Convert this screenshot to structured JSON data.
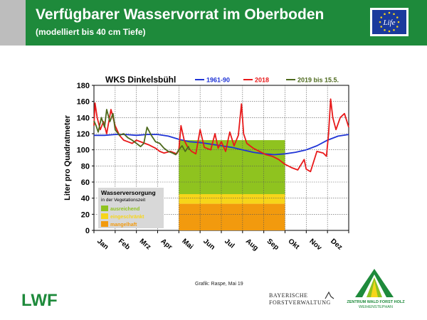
{
  "header": {
    "title": "Verfügbarer Wasservorrat im Oberboden",
    "subtitle": "(modelliert bis 40 cm Tiefe)"
  },
  "eu_badge": {
    "text": "Life",
    "icon": "eu-life-flag-icon",
    "color": "#1a3a9c"
  },
  "chart_data": {
    "type": "line",
    "title": "WKS Dinkelsbühl",
    "ylabel": "Liter pro Quadratmeter",
    "xlabel": "",
    "ylim": [
      0,
      180
    ],
    "yticks": [
      0,
      20,
      40,
      60,
      80,
      100,
      120,
      140,
      160,
      180
    ],
    "xlim": [
      0,
      12
    ],
    "months": [
      "Jan",
      "Feb",
      "Mrz",
      "Apr",
      "Mai",
      "Jun",
      "Jul",
      "Aug",
      "Sep",
      "Okt",
      "Nov",
      "Dez"
    ],
    "grid": true,
    "legend_placement": "top",
    "series": [
      {
        "name": "1961-90",
        "color": "#1f34d6",
        "x": [
          0,
          0.5,
          1,
          1.5,
          2,
          2.5,
          3,
          3.5,
          4,
          4.5,
          5,
          5.5,
          6,
          6.5,
          7,
          7.5,
          8,
          8.5,
          9,
          9.5,
          10,
          10.5,
          11,
          11.5,
          12
        ],
        "y": [
          118,
          118,
          119,
          119,
          118,
          119,
          119,
          117,
          113,
          110,
          109,
          107,
          105,
          103,
          100,
          97,
          95,
          94,
          95,
          97,
          100,
          105,
          112,
          117,
          119
        ]
      },
      {
        "name": "2018",
        "color": "#e8191a",
        "x": [
          0,
          0.05,
          0.15,
          0.3,
          0.45,
          0.6,
          0.8,
          1.0,
          1.2,
          1.4,
          1.6,
          1.8,
          2.0,
          2.3,
          2.6,
          2.9,
          3.1,
          3.3,
          3.6,
          3.9,
          4.0,
          4.1,
          4.25,
          4.4,
          4.6,
          4.8,
          5.0,
          5.2,
          5.5,
          5.7,
          5.85,
          6.0,
          6.2,
          6.4,
          6.6,
          6.8,
          6.95,
          7.05,
          7.2,
          7.5,
          7.8,
          8.1,
          8.4,
          8.7,
          9.0,
          9.3,
          9.6,
          9.9,
          10.0,
          10.2,
          10.5,
          10.8,
          10.95,
          11.05,
          11.15,
          11.25,
          11.4,
          11.6,
          11.8,
          12.0
        ],
        "y": [
          130,
          158,
          140,
          125,
          135,
          120,
          150,
          130,
          118,
          112,
          110,
          108,
          112,
          109,
          106,
          102,
          98,
          96,
          98,
          95,
          100,
          130,
          112,
          104,
          98,
          95,
          125,
          103,
          100,
          120,
          102,
          110,
          98,
          122,
          105,
          118,
          157,
          120,
          108,
          102,
          98,
          94,
          92,
          88,
          82,
          78,
          75,
          88,
          76,
          73,
          98,
          96,
          92,
          120,
          163,
          140,
          125,
          140,
          145,
          128
        ]
      },
      {
        "name": "2019 bis 15.5.",
        "color": "#4e6a1e",
        "x": [
          0,
          0.1,
          0.2,
          0.35,
          0.5,
          0.6,
          0.75,
          0.9,
          1.0,
          1.2,
          1.4,
          1.6,
          1.8,
          2.0,
          2.2,
          2.35,
          2.5,
          2.7,
          2.9,
          3.1,
          3.3,
          3.5,
          3.7,
          3.85,
          4.0,
          4.15,
          4.3,
          4.45,
          4.5
        ],
        "y": [
          136,
          130,
          122,
          140,
          128,
          150,
          135,
          145,
          125,
          118,
          120,
          115,
          112,
          108,
          104,
          108,
          128,
          118,
          110,
          108,
          102,
          98,
          96,
          94,
          100,
          105,
          98,
          104,
          100
        ]
      }
    ],
    "supply_blocks": [
      {
        "label": "ausreichend",
        "color": "#8fc31f",
        "y0": 45,
        "y1": 112
      },
      {
        "label": "eingeschränkt",
        "color": "#f7d51a",
        "y0": 33,
        "y1": 45
      },
      {
        "label": "mangelhaft",
        "color": "#f29a0e",
        "y0": 0,
        "y1": 33
      }
    ],
    "supply_x_range": [
      4,
      9
    ],
    "supply_legend": {
      "title": "Wasserversorgung",
      "subtitle": "in der Vegetationszeit"
    }
  },
  "footer": {
    "credit": "Grafik: Raspe, Mai 19",
    "lwf_logo_text": "LWF",
    "bfv_line1": "BAYERISCHE",
    "bfv_line2": "FORSTVERWALTUNG",
    "zwf_line1": "ZENTRUM WALD FORST HOLZ",
    "zwf_line2": "WEIHENSTEPHAN"
  }
}
